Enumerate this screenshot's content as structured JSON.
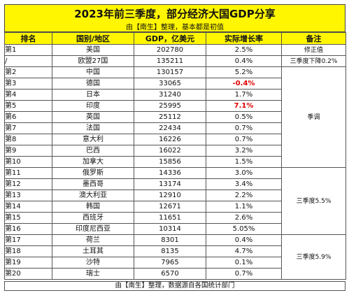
{
  "title": "2023年前三季度，部分经济大国GDP分享",
  "subtitle": "由【南生】整理，基本都是初值",
  "footer": "由【南生】整理，数据源自各国统计部门",
  "colors": {
    "header_bg": "#fff600",
    "highlight_text": "#e00000"
  },
  "chart_data": {
    "type": "table",
    "title": "2023年前三季度，部分经济大国GDP分享",
    "subtitle": "由【南生】整理，基本都是初值",
    "columns": [
      "排名",
      "国别/地区",
      "GDP，亿美元",
      "实际增长率",
      "备注"
    ],
    "rows": [
      {
        "rank": "第1",
        "country": "美国",
        "gdp": "202780",
        "growth": "2.5%",
        "style": ""
      },
      {
        "rank": "/",
        "country": "欧盟27国",
        "gdp": "135211",
        "growth": "0.4%",
        "style": ""
      },
      {
        "rank": "第2",
        "country": "中国",
        "gdp": "130157",
        "growth": "5.2%",
        "style": ""
      },
      {
        "rank": "第3",
        "country": "德国",
        "gdp": "33065",
        "growth": "-0.4%",
        "style": "neg"
      },
      {
        "rank": "第4",
        "country": "日本",
        "gdp": "31240",
        "growth": "1.7%",
        "style": ""
      },
      {
        "rank": "第5",
        "country": "印度",
        "gdp": "25995",
        "growth": "7.1%",
        "style": "hi"
      },
      {
        "rank": "第6",
        "country": "英国",
        "gdp": "25112",
        "growth": "0.5%",
        "style": ""
      },
      {
        "rank": "第7",
        "country": "法国",
        "gdp": "22434",
        "growth": "0.7%",
        "style": ""
      },
      {
        "rank": "第8",
        "country": "意大利",
        "gdp": "16226",
        "growth": "0.7%",
        "style": ""
      },
      {
        "rank": "第9",
        "country": "巴西",
        "gdp": "16022",
        "growth": "3.2%",
        "style": ""
      },
      {
        "rank": "第10",
        "country": "加拿大",
        "gdp": "15856",
        "growth": "1.5%",
        "style": ""
      },
      {
        "rank": "第11",
        "country": "俄罗斯",
        "gdp": "14336",
        "growth": "3.0%",
        "style": ""
      },
      {
        "rank": "第12",
        "country": "墨西哥",
        "gdp": "13174",
        "growth": "3.4%",
        "style": ""
      },
      {
        "rank": "第13",
        "country": "澳大利亚",
        "gdp": "12910",
        "growth": "2.2%",
        "style": ""
      },
      {
        "rank": "第14",
        "country": "韩国",
        "gdp": "12671",
        "growth": "1.1%",
        "style": ""
      },
      {
        "rank": "第15",
        "country": "西班牙",
        "gdp": "11651",
        "growth": "2.6%",
        "style": ""
      },
      {
        "rank": "第16",
        "country": "印度尼西亚",
        "gdp": "10314",
        "growth": "5.05%",
        "style": ""
      },
      {
        "rank": "第17",
        "country": "荷兰",
        "gdp": "8301",
        "growth": "0.4%",
        "style": ""
      },
      {
        "rank": "第18",
        "country": "土耳其",
        "gdp": "8135",
        "growth": "4.7%",
        "style": ""
      },
      {
        "rank": "第19",
        "country": "沙特",
        "gdp": "7965",
        "growth": "0.1%",
        "style": ""
      },
      {
        "rank": "第20",
        "country": "瑞士",
        "gdp": "6570",
        "growth": "0.7%",
        "style": ""
      }
    ],
    "notes": [
      {
        "row": 0,
        "span": 1,
        "text": "修正值"
      },
      {
        "row": 1,
        "span": 1,
        "text": "三季度下降0.2%"
      },
      {
        "row": 2,
        "span": 9,
        "text": "季调"
      },
      {
        "row": 11,
        "span": 6,
        "text": "三季度5.5%"
      },
      {
        "row": 17,
        "span": 4,
        "text": "三季度5.9%"
      }
    ]
  }
}
